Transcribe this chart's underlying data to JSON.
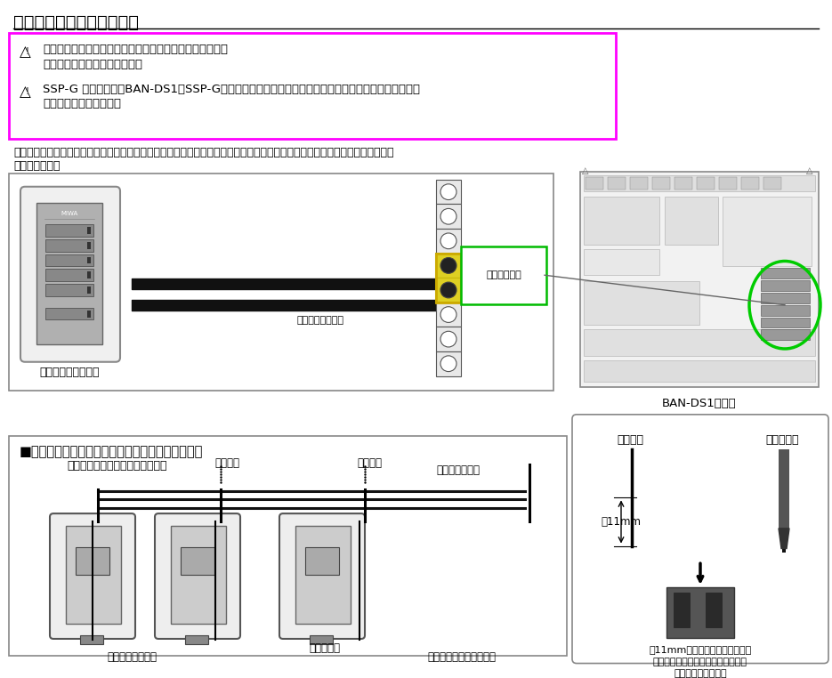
{
  "title": "２線式操作表示器との接続",
  "bg_color": "#ffffff",
  "warning_box_color": "#ff00ff",
  "warning_box_bg": "#ffffff",
  "warning1_line1": "作業を行なう前に電源スイッチをＯＦＦにしてください。",
  "warning1_line2": "感電、故障の原因となります。",
  "warning2_line1": "SSP-G 接続の際は、BAN-DS1とSSP-Gの間の配線が、ショートしていないことを確認してください。",
  "warning2_line2": "故障の原因となります。",
  "desc_line1": "２線式操作表示器（別途手配品　型式：ＳＳＰ－Ｇ１Ｄ、ＳＳＰ－Ｇ１Ｅ）を使用する場合に接続します。接続する２線に極性",
  "desc_line2": "はありません。",
  "label_device": "２線式操作表示器へ",
  "label_polarity": "極性はありません",
  "label_terminal": "黄色の端子台",
  "label_bands1": "BAN-DS1内観図",
  "bottom_title": "■　同一回線に操作表示器を２台以上使用する場合",
  "bottom_sub": "下図のように接続してください。",
  "label_connect1": "結線する",
  "label_connect2": "結線する",
  "label_elec": "電気錠操作盤へ",
  "label_display": "操作表示器　裏面",
  "label_terminal2": "接続端子台",
  "label_max": "最大接続数は３台です。",
  "right_title_lead": "リード線",
  "right_title_driver": "ドライバー",
  "right_label_11mm": "約11mm",
  "right_desc1": "約11mm程芯線を出し、マイナス",
  "right_desc2": "ドライバー等でツメを押しながらリ",
  "right_desc3": "ード線を差し込む。"
}
